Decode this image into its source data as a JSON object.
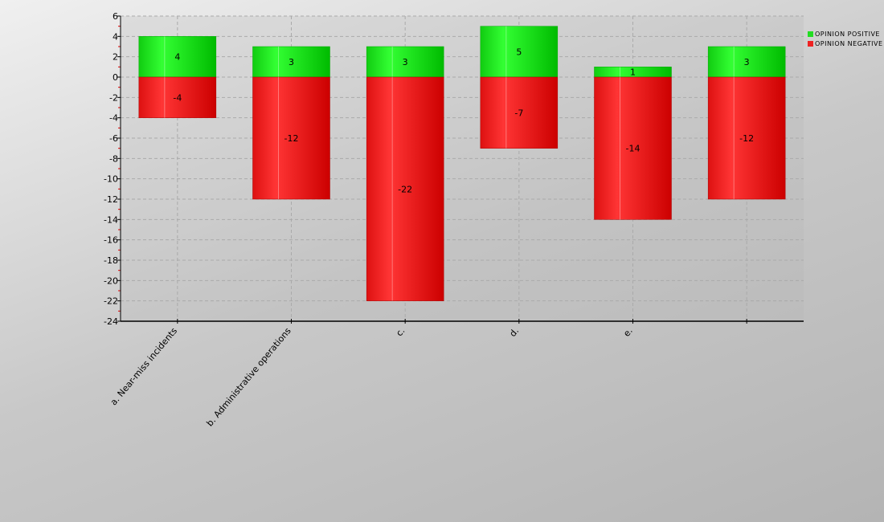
{
  "chart_data": {
    "type": "bar",
    "stacked": true,
    "categories": [
      "a. Near-miss incidents",
      "b. Administrative operations",
      "c.",
      "d.",
      "e.",
      ""
    ],
    "series": [
      {
        "name": "OPINION POSITIVE",
        "color": "#22dd22",
        "values": [
          4,
          3,
          3,
          5,
          1,
          3
        ]
      },
      {
        "name": "OPINION NEGATIVE",
        "color": "#ee2222",
        "values": [
          -4,
          -12,
          -22,
          -7,
          -14,
          -12
        ]
      }
    ],
    "ylim": [
      -24,
      6
    ],
    "yticks": [
      6,
      4,
      2,
      0,
      -2,
      -4,
      -6,
      -8,
      -10,
      -12,
      -14,
      -16,
      -18,
      -20,
      -22,
      -24
    ],
    "grid": true,
    "legend": "top-right",
    "title": "",
    "xlabel": "",
    "ylabel": ""
  }
}
